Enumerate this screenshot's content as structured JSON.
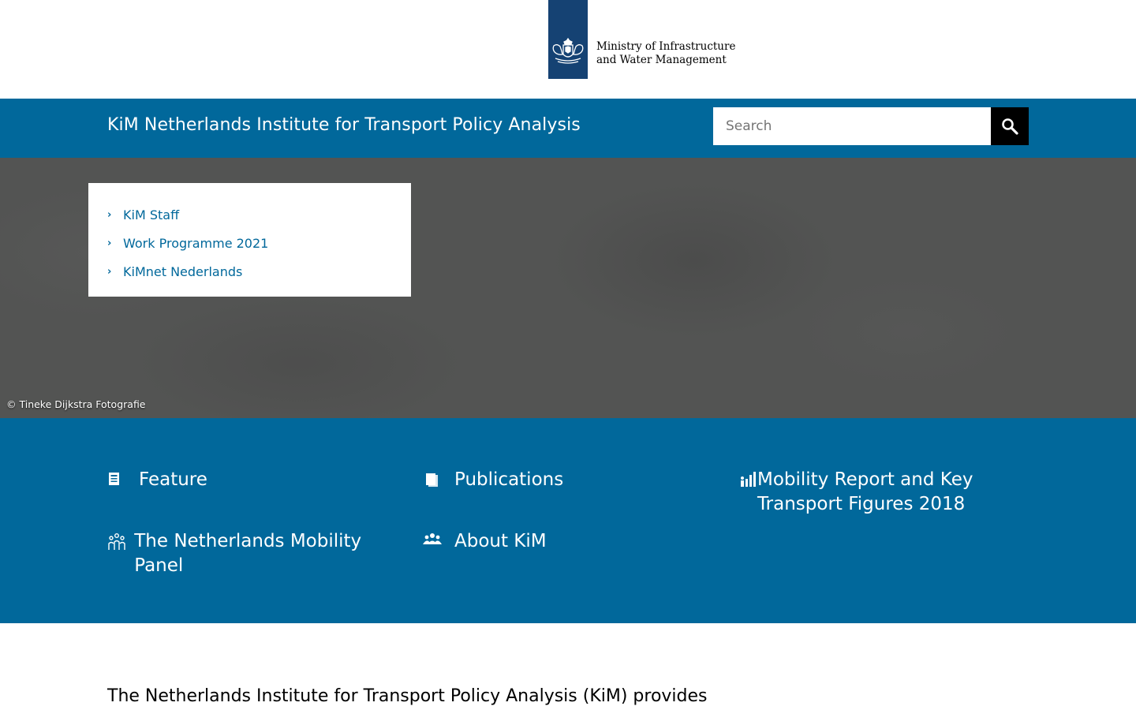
{
  "logo": {
    "line1": "Ministry of Infrastructure",
    "line2": "and Water Management",
    "icon": "coat-of-arms-icon",
    "block_color": "#154273"
  },
  "header": {
    "site_title": "KiM Netherlands Institute for Transport Policy Analysis",
    "bar_color": "#01689b"
  },
  "search": {
    "placeholder": "Search",
    "value": "",
    "button_icon": "magnifier-icon"
  },
  "hero": {
    "menu": [
      {
        "label": "KiM Staff"
      },
      {
        "label": "Work Programme 2021"
      },
      {
        "label": "KiMnet Nederlands"
      }
    ],
    "credit": "© Tineke Dijkstra Fotografie"
  },
  "tiles": [
    {
      "label": "Feature",
      "icon": "newspaper-icon"
    },
    {
      "label": "Publications",
      "icon": "book-icon"
    },
    {
      "label": "Mobility Report and Key Transport Figures 2018",
      "icon": "bar-chart-people-icon"
    },
    {
      "label": "The Netherlands Mobility Panel",
      "icon": "people-group-icon"
    },
    {
      "label": "About KiM",
      "icon": "team-icon"
    }
  ],
  "intro": {
    "text": "The Netherlands Institute for Transport Policy Analysis (KiM) provides"
  }
}
